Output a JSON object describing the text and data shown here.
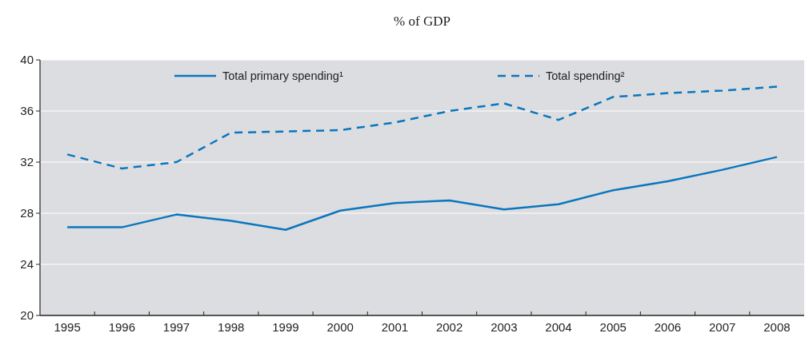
{
  "chart_data": {
    "type": "line",
    "title": "% of GDP",
    "categories": [
      "1995",
      "1996",
      "1997",
      "1998",
      "1999",
      "2000",
      "2001",
      "2002",
      "2003",
      "2004",
      "2005",
      "2006",
      "2007",
      "2008"
    ],
    "series": [
      {
        "name": "Total primary spending¹",
        "color": "#0a76be",
        "line_style": "solid",
        "values": [
          26.9,
          26.9,
          27.9,
          27.4,
          26.7,
          28.2,
          28.8,
          29.0,
          28.3,
          28.7,
          29.8,
          30.5,
          31.4,
          32.4
        ]
      },
      {
        "name": "Total spending²",
        "color": "#0a76be",
        "line_style": "dashed",
        "values": [
          32.6,
          31.5,
          32.0,
          34.3,
          34.4,
          34.5,
          35.1,
          36.0,
          36.6,
          35.3,
          37.1,
          37.4,
          37.6,
          37.9
        ]
      }
    ],
    "ylim": [
      20,
      40
    ],
    "yticks": [
      20,
      24,
      28,
      32,
      36,
      40
    ],
    "grid": "y",
    "legend": "top",
    "marker": "none"
  }
}
